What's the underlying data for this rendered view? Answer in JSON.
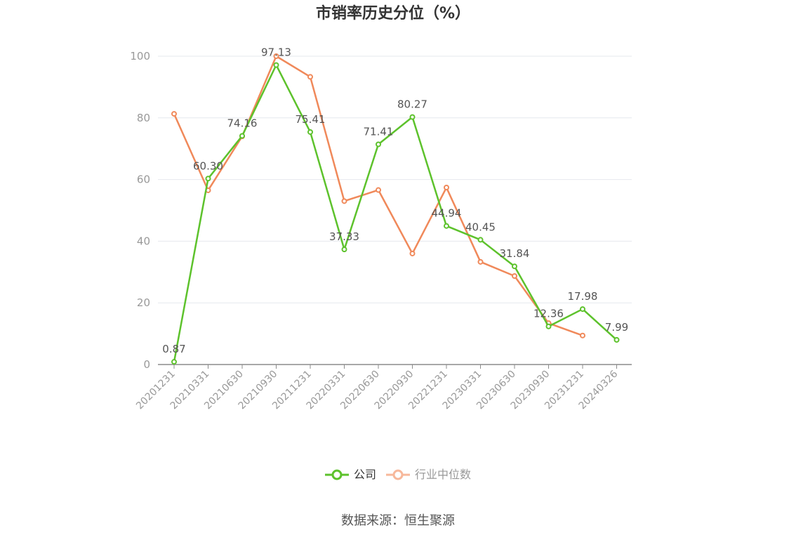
{
  "chart_data": {
    "type": "line",
    "title": "市销率历史分位（%）",
    "categories": [
      "20201231",
      "20210331",
      "20210630",
      "20210930",
      "20211231",
      "20220331",
      "20220630",
      "20220930",
      "20221231",
      "20230331",
      "20230630",
      "20230930",
      "20231231",
      "20240326"
    ],
    "series": [
      {
        "name": "公司",
        "color": "#5dc22c",
        "values": [
          0.87,
          60.3,
          74.16,
          97.13,
          75.41,
          37.33,
          71.41,
          80.27,
          44.94,
          40.45,
          31.84,
          12.36,
          17.98,
          7.99
        ],
        "labels": [
          "0.87",
          "60.30",
          "74.16",
          "97.13",
          "75.41",
          "37.33",
          "71.41",
          "80.27",
          "44.94",
          "40.45",
          "31.84",
          "12.36",
          "17.98",
          "7.99"
        ]
      },
      {
        "name": "行业中位数",
        "color": "#f0895a",
        "values": [
          81.3,
          56.5,
          74.0,
          100,
          93.3,
          53.0,
          56.6,
          36.0,
          57.4,
          33.3,
          28.7,
          13.4,
          9.4,
          null
        ]
      }
    ],
    "yticks": [
      "0",
      "20",
      "40",
      "60",
      "80",
      "100"
    ],
    "ylim": [
      0,
      100
    ],
    "legend_position": "bottom",
    "grid": true
  },
  "legend": {
    "company_color": "#5dc22c",
    "industry_color": "#f7b89b",
    "industry_text_color": "#999999",
    "company_text_color": "#333333"
  },
  "footer": {
    "source": "数据来源：恒生聚源"
  }
}
